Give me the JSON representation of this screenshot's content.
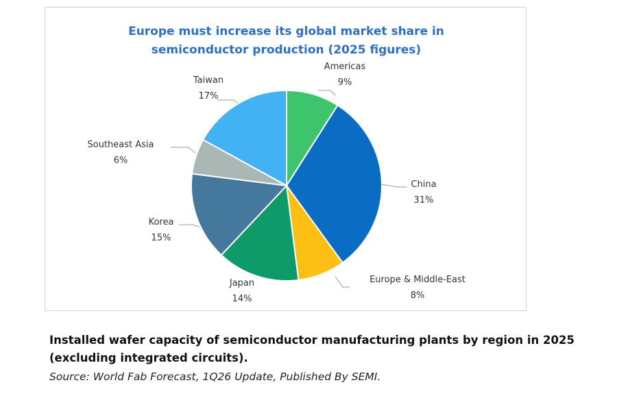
{
  "chart_data": {
    "type": "pie",
    "title_lines": [
      "Europe must increase its global market share in",
      "semiconductor production (2025 figures)"
    ],
    "unit": "%",
    "slices": [
      {
        "label": "Americas",
        "value": 9,
        "color": "#3fc46e"
      },
      {
        "label": "China",
        "value": 31,
        "color": "#0a6cc2"
      },
      {
        "label": "Europe & Middle-East",
        "value": 8,
        "color": "#fdbf14"
      },
      {
        "label": "Japan",
        "value": 14,
        "color": "#0f9a6a"
      },
      {
        "label": "Korea",
        "value": 15,
        "color": "#44789d"
      },
      {
        "label": "Southeast Asia",
        "value": 6,
        "color": "#a9b7b5"
      },
      {
        "label": "Taiwan",
        "value": 17,
        "color": "#43b2f5"
      }
    ],
    "legend": "none"
  },
  "caption": {
    "text": "Installed wafer capacity of semiconductor manufacturing plants by region in 2025 (excluding integrated circuits).",
    "source": "Source: World Fab Forecast, 1Q26 Update, Published By SEMI."
  }
}
